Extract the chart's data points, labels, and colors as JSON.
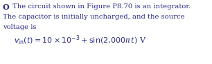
{
  "bullet": "O",
  "line1": "The circuit shown in Figure P8.70 is an integrator.",
  "line2": "The capacitor is initially uncharged, and the source",
  "line3": "voltage is",
  "equation": "$v_{\\mathrm{in}}(t) = 10 \\times 10^{-3} + \\sin(2{,}000\\pi\\, t)$ V",
  "text_color": "#2b2b8c",
  "bg_color": "#ffffff",
  "fontsize_body": 7.2,
  "fontsize_eq": 8.0,
  "fontsize_bullet": 8.0
}
